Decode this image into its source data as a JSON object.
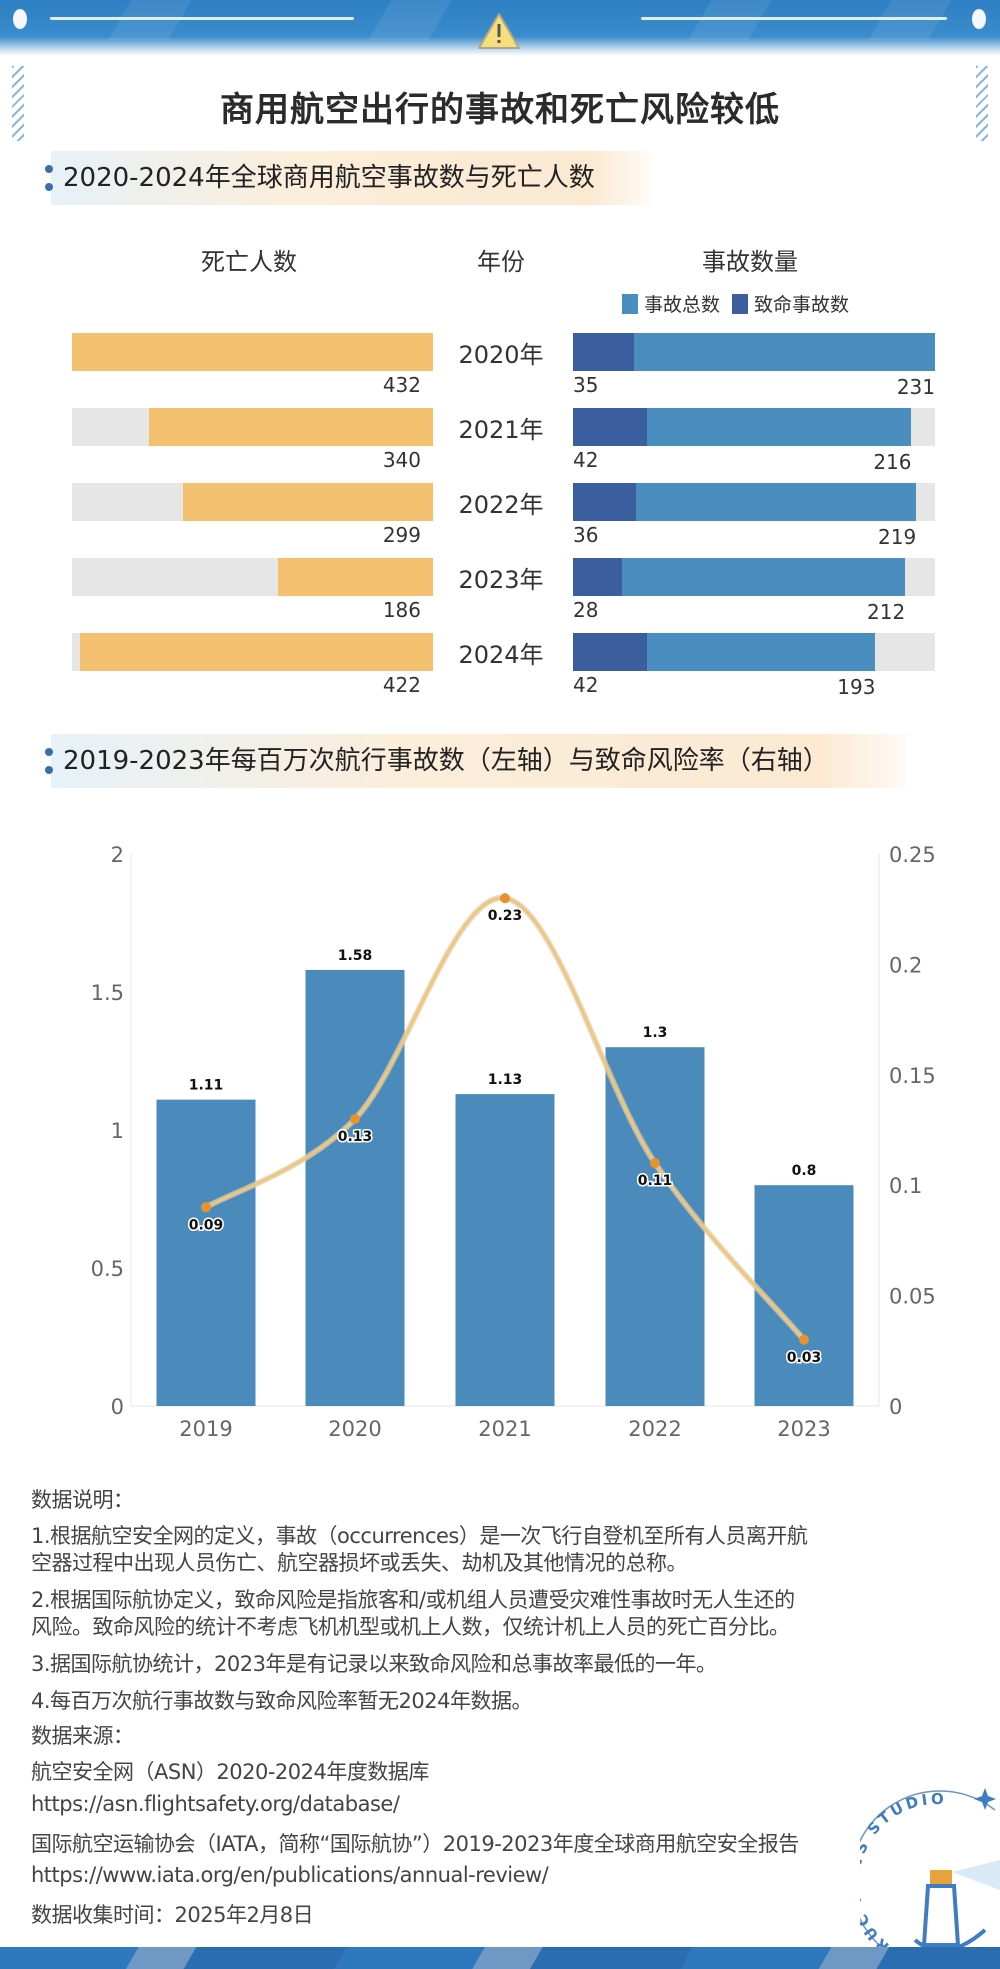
{
  "header": {
    "title": "商用航空出行的事故和死亡风险较低",
    "icon": "warning-triangle-icon"
  },
  "section1": {
    "title": "2020-2024年全球商用航空事故数与死亡人数",
    "col_deaths": "死亡人数",
    "col_year": "年份",
    "col_accidents": "事故数量",
    "legend_total": "事故总数",
    "legend_fatal": "致命事故数"
  },
  "section2": {
    "title": "2019-2023年每百万次航行事故数（左轴）与致命风险率（右轴）"
  },
  "colors": {
    "deaths": "#f3c06f",
    "track": "#e6e6e6",
    "total": "#4a8ebf",
    "fatal": "#3a5e9e",
    "bar": "#4b8bbb",
    "line": "#f0c679",
    "point": "#e8912d",
    "header": "#2e7fc3"
  },
  "chart_data": [
    {
      "type": "bar",
      "orientation": "horizontal-butterfly",
      "categories": [
        "2020年",
        "2021年",
        "2022年",
        "2023年",
        "2024年"
      ],
      "series": [
        {
          "name": "死亡人数",
          "values": [
            432,
            340,
            299,
            186,
            422
          ]
        },
        {
          "name": "事故总数",
          "values": [
            231,
            216,
            219,
            212,
            193
          ]
        },
        {
          "name": "致命事故数",
          "values": [
            35,
            42,
            36,
            28,
            42
          ]
        }
      ]
    },
    {
      "type": "bar+line",
      "categories": [
        "2019",
        "2020",
        "2021",
        "2022",
        "2023"
      ],
      "series": [
        {
          "type": "bar",
          "axis": "left",
          "values": [
            1.11,
            1.58,
            1.13,
            1.3,
            0.8
          ],
          "labels": [
            "1.11",
            "1.58",
            "1.13",
            "1.3",
            "0.8"
          ]
        },
        {
          "type": "line",
          "axis": "right",
          "values": [
            0.09,
            0.13,
            0.23,
            0.11,
            0.03
          ],
          "labels": [
            "0.09",
            "0.13",
            "0.23",
            "0.11",
            "0.03"
          ]
        }
      ],
      "ylim_left": [
        0,
        2
      ],
      "ylim_right": [
        0,
        0.25
      ],
      "yticks_left": [
        "0",
        "0.5",
        "1",
        "1.5",
        "2"
      ],
      "yticks_right": [
        "0",
        "0.05",
        "0.1",
        "0.15",
        "0.2",
        "0.25"
      ],
      "grid": false
    }
  ],
  "notes": {
    "heading": "数据说明：",
    "lines": [
      "1.根据航空安全网的定义，事故（occurrences）是一次飞行自登机至所有人员离开航",
      "空器过程中出现人员伤亡、航空器损坏或丢失、劫机及其他情况的总称。",
      "2.根据国际航协定义，致命风险是指旅客和/或机组人员遭受灾难性事故时无人生还的",
      "风险。致命风险的统计不考虑飞机机型或机上人数，仅统计机上人员的死亡百分比。",
      "3.据国际航协统计，2023年是有记录以来致命风险和总事故率最低的一年。",
      "4.每百万次航行事故数与致命风险率暂无2024年数据。"
    ],
    "sources_heading": "数据来源：",
    "sources": [
      "航空安全网（ASN）2020-2024年度数据库",
      "https://asn.flightsafety.org/database/",
      "国际航空运输协会（IATA，简称“国际航协”）2019-2023年度全球商用航空安全报告",
      "https://www.iata.org/en/publications/annual-review/"
    ],
    "collected": "数据收集时间：2025年2月8日"
  },
  "logo": {
    "text": "RUC NEWS STUDIO"
  }
}
